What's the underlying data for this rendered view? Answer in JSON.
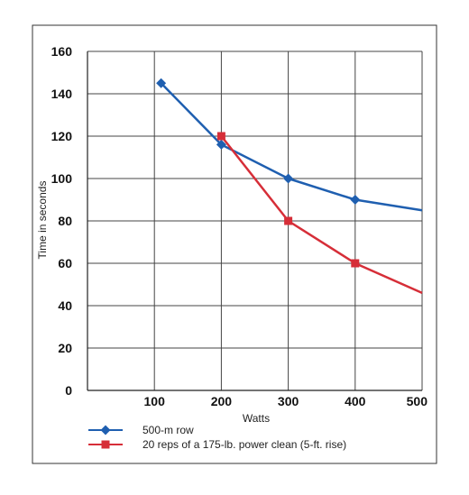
{
  "chart_data": {
    "type": "line",
    "title": "",
    "xlabel": "Watts",
    "ylabel": "Time in seconds",
    "xlim": [
      0,
      500
    ],
    "ylim": [
      0,
      160
    ],
    "xticks": [
      100,
      200,
      300,
      400,
      500
    ],
    "yticks": [
      0,
      20,
      40,
      60,
      80,
      100,
      120,
      140,
      160
    ],
    "grid": true,
    "legend_position": "bottom-left",
    "series": [
      {
        "name": "500-m row",
        "color": "#1f5fb0",
        "marker": "diamond",
        "points": [
          {
            "x": 110,
            "y": 145,
            "marker": true
          },
          {
            "x": 200,
            "y": 116,
            "marker": true
          },
          {
            "x": 300,
            "y": 100,
            "marker": true
          },
          {
            "x": 400,
            "y": 90,
            "marker": true
          },
          {
            "x": 500,
            "y": 85,
            "marker": false
          }
        ]
      },
      {
        "name": "20 reps of a 175-lb. power clean (5-ft. rise)",
        "color": "#d62e38",
        "marker": "square",
        "points": [
          {
            "x": 200,
            "y": 120,
            "marker": true
          },
          {
            "x": 300,
            "y": 80,
            "marker": true
          },
          {
            "x": 400,
            "y": 60,
            "marker": true
          },
          {
            "x": 500,
            "y": 46,
            "marker": false
          }
        ]
      }
    ]
  }
}
